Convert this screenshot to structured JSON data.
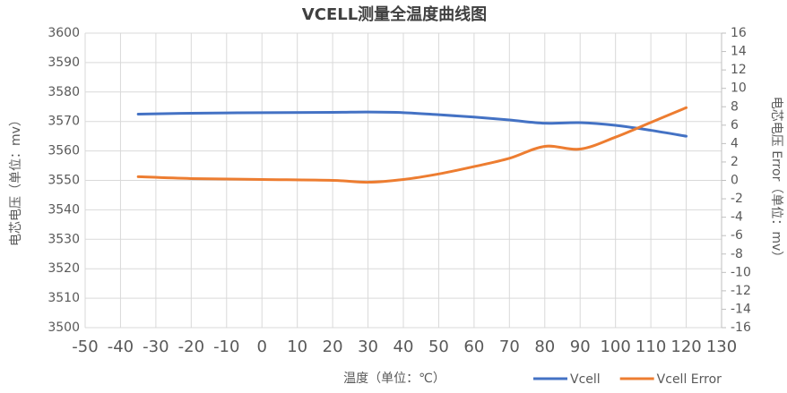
{
  "chart_data": {
    "type": "line",
    "title": "VCELL测量全温度曲线图",
    "x_label": "温度（单位：℃）",
    "y_label": "电芯电压（单位：mv）",
    "y2_label": "电芯电压 Error（单位：mv）",
    "x": [
      -35,
      -20,
      0,
      20,
      30,
      40,
      50,
      60,
      70,
      80,
      90,
      100,
      110,
      120
    ],
    "series": [
      {
        "name": "Vcell",
        "color": "#4472c4",
        "values": [
          3572.5,
          3572.8,
          3573,
          3573.1,
          3573.2,
          3573,
          3572.3,
          3571.5,
          3570.5,
          3569.4,
          3569.6,
          3568.7,
          3567,
          3565
        ]
      },
      {
        "name": "Vcell Error",
        "color": "#ed7d31",
        "axis": "y2",
        "values": [
          0.4,
          0.2,
          0.1,
          0,
          -0.2,
          0.1,
          0.7,
          1.5,
          2.4,
          3.7,
          3.4,
          4.7,
          6.3,
          7.9
        ]
      }
    ],
    "xlim": [
      -50,
      130
    ],
    "xticks": [
      -50,
      -40,
      -30,
      -20,
      -10,
      0,
      10,
      20,
      30,
      40,
      50,
      60,
      70,
      80,
      90,
      100,
      110,
      120,
      130
    ],
    "ylim": [
      3500,
      3600
    ],
    "yticks": [
      3500,
      3510,
      3520,
      3530,
      3540,
      3550,
      3560,
      3570,
      3580,
      3590,
      3600
    ],
    "y2lim": [
      -16,
      16
    ],
    "y2ticks": [
      -16,
      -14,
      -12,
      -10,
      -8,
      -6,
      -4,
      -2,
      0,
      2,
      4,
      6,
      8,
      10,
      12,
      14,
      16
    ],
    "grid": true,
    "legend": "bottom-right"
  }
}
